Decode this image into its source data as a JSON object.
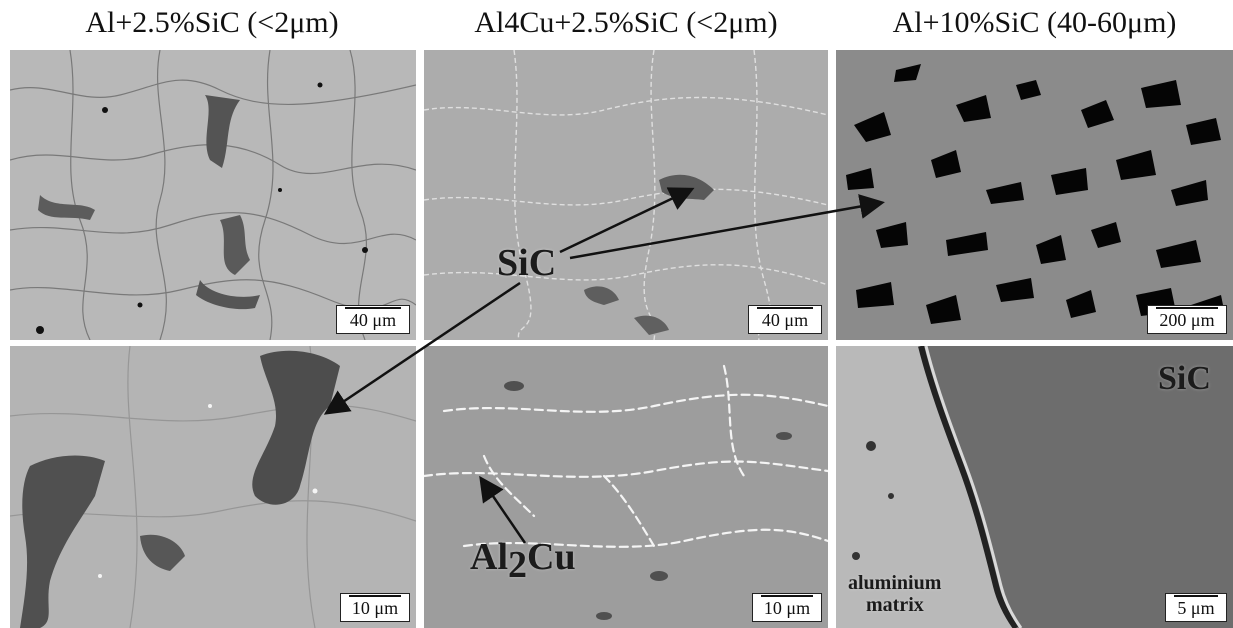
{
  "titles": {
    "col1": "Al+2.5%SiC (<2μm)",
    "col2": "Al4Cu+2.5%SiC (<2μm)",
    "col3": "Al+10%SiC (40-60μm)"
  },
  "scale_bars": {
    "top_left": "40 μm",
    "top_middle": "40 μm",
    "top_right": "200 μm",
    "bottom_left": "10 μm",
    "bottom_middle": "10 μm",
    "bottom_right": "5 μm"
  },
  "annotations": {
    "sic_center": "SiC",
    "al2cu_main": "Al",
    "al2cu_sub": "2",
    "al2cu_tail": "Cu",
    "sic_corner": "SiC",
    "matrix_line1": "aluminium",
    "matrix_line2": "matrix"
  },
  "colors": {
    "matrix_light": "#b9b9b9",
    "matrix_mid": "#a5a5a5",
    "sic_dark": "#4a4a4a",
    "sic_black": "#050505",
    "intermetallic_white": "#f2f2f2",
    "sic_large_grey": "#6e6e6e"
  }
}
